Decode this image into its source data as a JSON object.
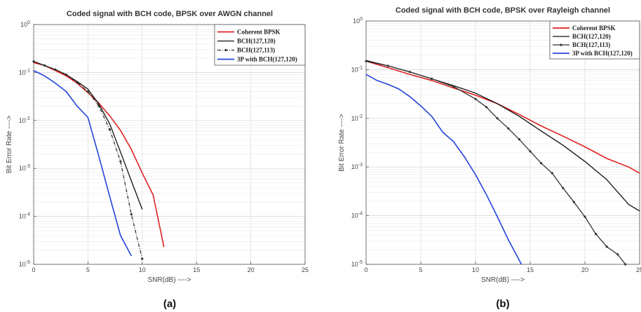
{
  "chart_data": [
    {
      "type": "line",
      "title": "Coded signal with BCH code, BPSK over AWGN channel",
      "xlabel": "SNR(dB) ---->",
      "ylabel": "Bit Error Rate ---->",
      "caption": "(a)",
      "xlim": [
        0,
        25
      ],
      "ylim": [
        1e-05,
        1
      ],
      "yscale": "log",
      "grid": true,
      "legend": "top-right",
      "xticks": [
        "0",
        "5",
        "10",
        "15",
        "20",
        "25"
      ],
      "yticks": [
        "10-5",
        "10-4",
        "10-3",
        "10-2",
        "10-1",
        "100"
      ],
      "series": [
        {
          "name": "Coherent BPSK",
          "color": "#e02020",
          "style": "solid",
          "x": [
            0,
            1,
            2,
            3,
            4,
            5,
            6,
            7,
            8,
            9,
            10,
            11,
            12
          ],
          "y": [
            0.16,
            0.14,
            0.11,
            0.085,
            0.06,
            0.038,
            0.023,
            0.0125,
            0.0062,
            0.0025,
            0.0008,
            0.00028,
            2.3e-05
          ]
        },
        {
          "name": "BCH(127,120)",
          "color": "#111111",
          "style": "solid",
          "x": [
            0,
            1,
            2,
            3,
            4,
            5,
            6,
            7,
            8,
            9,
            10
          ],
          "y": [
            0.17,
            0.14,
            0.115,
            0.09,
            0.065,
            0.045,
            0.022,
            0.0085,
            0.0022,
            0.00055,
            0.00014
          ]
        },
        {
          "name": "BCH(127,113)",
          "color": "#333333",
          "style": "dashdot",
          "x": [
            0,
            1,
            2,
            3,
            4,
            5,
            6,
            7,
            8,
            9,
            10
          ],
          "y": [
            0.17,
            0.14,
            0.115,
            0.09,
            0.062,
            0.04,
            0.02,
            0.0065,
            0.0014,
            0.00011,
            1.3e-05
          ]
        },
        {
          "name": "3P with BCH(127,120)",
          "color": "#2244dd",
          "style": "solid",
          "x": [
            0,
            1,
            2,
            3,
            4,
            5,
            6,
            7,
            8,
            9
          ],
          "y": [
            0.11,
            0.085,
            0.06,
            0.04,
            0.02,
            0.0115,
            0.0018,
            0.00026,
            4e-05,
            1.5e-05
          ]
        }
      ]
    },
    {
      "type": "line",
      "title": "Coded signal with BCH code, BPSK over Rayleigh channel",
      "xlabel": "SNR(dB) ---->",
      "ylabel": "Bit Error Rate ---->",
      "caption": "(b)",
      "xlim": [
        0,
        25
      ],
      "ylim": [
        1e-05,
        1
      ],
      "yscale": "log",
      "grid": true,
      "legend": "top-right",
      "xticks": [
        "0",
        "5",
        "10",
        "15",
        "20",
        "25"
      ],
      "yticks": [
        "10-5",
        "10-4",
        "10-3",
        "10-2",
        "10-1",
        "100"
      ],
      "series": [
        {
          "name": "Coherent BPSK",
          "color": "#e02020",
          "style": "solid",
          "x": [
            0,
            2,
            4,
            6,
            8,
            10,
            12,
            14,
            16,
            18,
            20,
            22,
            24,
            25
          ],
          "y": [
            0.15,
            0.11,
            0.08,
            0.06,
            0.042,
            0.03,
            0.02,
            0.012,
            0.007,
            0.0043,
            0.0026,
            0.0015,
            0.001,
            0.00075
          ]
        },
        {
          "name": "BCH(127,120)",
          "color": "#111111",
          "style": "solid",
          "x": [
            0,
            2,
            4,
            6,
            8,
            10,
            12,
            14,
            16,
            18,
            20,
            22,
            24,
            25
          ],
          "y": [
            0.155,
            0.12,
            0.09,
            0.065,
            0.047,
            0.033,
            0.02,
            0.011,
            0.0055,
            0.0028,
            0.0013,
            0.00055,
            0.00017,
            0.000125
          ]
        },
        {
          "name": "BCH(127,113)",
          "color": "#333333",
          "style": "solid-marker",
          "x": [
            0,
            2,
            4,
            6,
            8,
            10,
            11,
            12,
            13,
            14,
            15,
            16,
            17,
            18,
            19,
            20,
            21,
            22,
            23,
            23.7
          ],
          "y": [
            0.15,
            0.12,
            0.09,
            0.065,
            0.045,
            0.025,
            0.017,
            0.01,
            0.0062,
            0.0037,
            0.0021,
            0.0012,
            0.00075,
            0.00037,
            0.00019,
            9.5e-05,
            4.2e-05,
            2.3e-05,
            1.6e-05,
            1e-05
          ]
        },
        {
          "name": "3P with BCH(127,120)",
          "color": "#2244dd",
          "style": "solid",
          "x": [
            0,
            1,
            2,
            3,
            4,
            5,
            6,
            7,
            8,
            9,
            10,
            11,
            12,
            13,
            14.2
          ],
          "y": [
            0.08,
            0.06,
            0.05,
            0.04,
            0.028,
            0.018,
            0.011,
            0.0052,
            0.0033,
            0.0016,
            0.0007,
            0.00027,
            9.5e-05,
            3.2e-05,
            1e-05
          ]
        }
      ]
    }
  ]
}
